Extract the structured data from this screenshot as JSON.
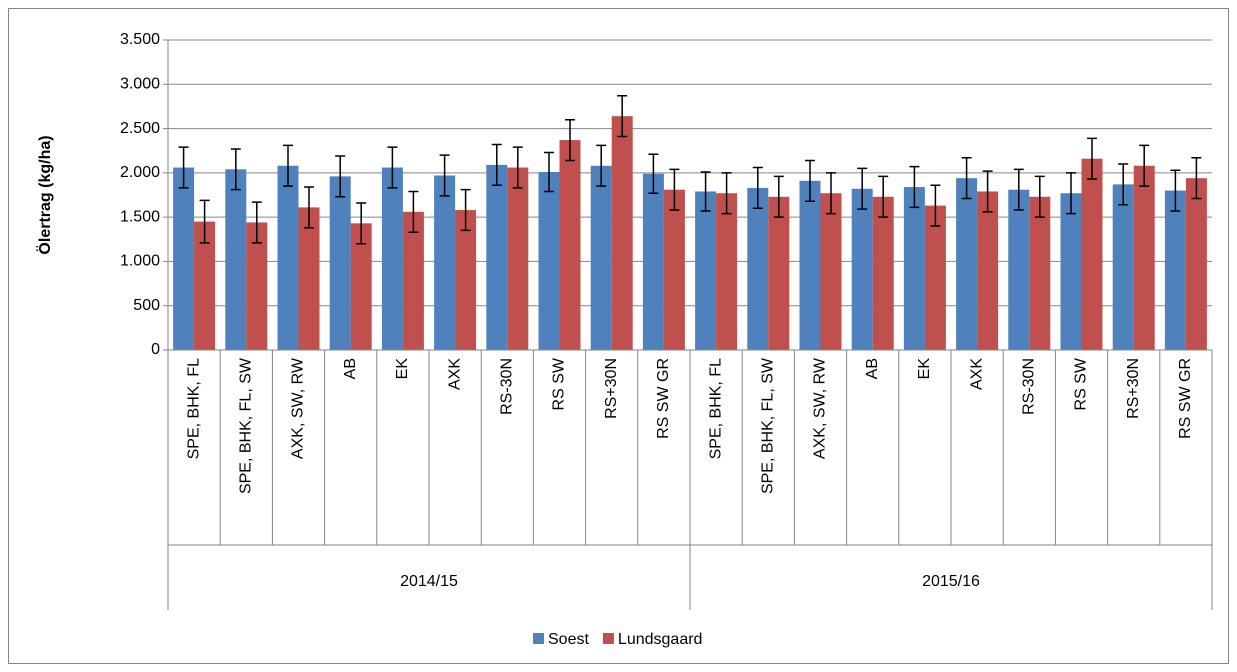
{
  "chart_data": {
    "type": "bar",
    "y_label": "Ölertrag (kg/ha)",
    "groups": [
      {
        "name": "2014/15",
        "categories": [
          "SPE, BHK, FL",
          "SPE, BHK, FL, SW",
          "AXK, SW, RW",
          "AB",
          "EK",
          "AXK",
          "RS-30N",
          "RS SW",
          "RS+30N",
          "RS SW GR"
        ]
      },
      {
        "name": "2015/16",
        "categories": [
          "SPE, BHK, FL",
          "SPE, BHK, FL, SW",
          "AXK, SW, RW",
          "AB",
          "EK",
          "AXK",
          "RS-30N",
          "RS SW",
          "RS+30N",
          "RS SW GR"
        ]
      }
    ],
    "series": [
      {
        "name": "Soest",
        "color": "#4f81bd",
        "values": [
          2060,
          2040,
          2080,
          1960,
          2060,
          1970,
          2090,
          2010,
          2080,
          1990,
          1790,
          1830,
          1910,
          1820,
          1840,
          1940,
          1810,
          1770,
          1870,
          1800
        ],
        "errors": [
          230,
          230,
          230,
          230,
          230,
          230,
          230,
          220,
          230,
          220,
          220,
          230,
          230,
          230,
          230,
          230,
          230,
          230,
          230,
          230
        ]
      },
      {
        "name": "Lundsgaard",
        "color": "#c0504d",
        "values": [
          1450,
          1440,
          1610,
          1430,
          1560,
          1580,
          2060,
          2370,
          2640,
          1810,
          1770,
          1730,
          1770,
          1730,
          1630,
          1790,
          1730,
          2160,
          2080,
          1940
        ],
        "errors": [
          240,
          230,
          230,
          230,
          230,
          230,
          230,
          230,
          230,
          230,
          230,
          230,
          230,
          230,
          230,
          230,
          230,
          230,
          230,
          230
        ]
      }
    ],
    "ylim": [
      0,
      3500
    ],
    "yticks": [
      0,
      500,
      {
        "value": 1000,
        "label": "1.000"
      },
      {
        "value": 1500,
        "label": "1.500"
      },
      {
        "value": 2000,
        "label": "2.000"
      },
      {
        "value": 2500,
        "label": "2.500"
      },
      {
        "value": 3000,
        "label": "3.000"
      },
      {
        "value": 3500,
        "label": "3.500"
      }
    ],
    "grid": true,
    "legend": "bottom"
  }
}
